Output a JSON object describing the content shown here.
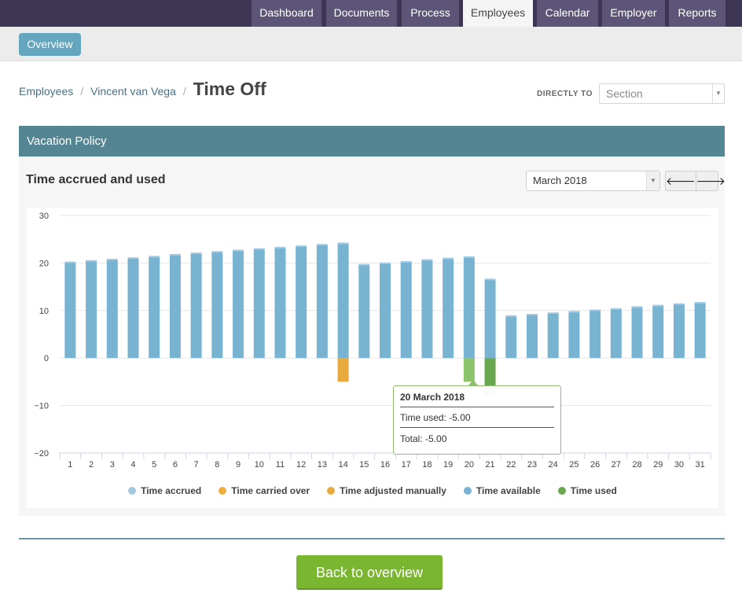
{
  "nav": {
    "tabs": [
      {
        "label": "Dashboard"
      },
      {
        "label": "Documents"
      },
      {
        "label": "Process"
      },
      {
        "label": "Employees",
        "active": true
      },
      {
        "label": "Calendar"
      },
      {
        "label": "Employer"
      },
      {
        "label": "Reports"
      }
    ]
  },
  "subbar": {
    "overview_label": "Overview"
  },
  "breadcrumb": {
    "items": [
      "Employees",
      "Vincent van Vega"
    ],
    "current": "Time Off"
  },
  "jump": {
    "label": "DIRECTLY TO",
    "placeholder": "Section"
  },
  "panel": {
    "title": "Vacation Policy",
    "subtitle": "Time accrued and used",
    "month": "March 2018",
    "prev_icon": "arrow-left-icon",
    "next_icon": "arrow-right-icon"
  },
  "chart_data": {
    "type": "bar",
    "ylim": [
      -20,
      30
    ],
    "yticks": [
      30,
      20,
      10,
      0,
      -10,
      -20
    ],
    "grid": true,
    "categories": [
      "1",
      "2",
      "3",
      "4",
      "5",
      "6",
      "7",
      "8",
      "9",
      "10",
      "11",
      "12",
      "13",
      "14",
      "15",
      "16",
      "17",
      "18",
      "19",
      "20",
      "21",
      "22",
      "23",
      "24",
      "25",
      "26",
      "27",
      "28",
      "29",
      "30",
      "31"
    ],
    "series": [
      {
        "name": "Time accrued",
        "color": "#a4c9e2",
        "values": [
          20.3,
          20.6,
          20.9,
          21.2,
          21.5,
          21.9,
          22.2,
          22.5,
          22.8,
          23.1,
          23.4,
          23.7,
          24.0,
          24.3,
          19.8,
          20.1,
          20.4,
          20.8,
          21.1,
          21.4,
          16.7,
          9.0,
          9.3,
          9.6,
          9.9,
          10.2,
          10.5,
          10.9,
          11.2,
          11.5,
          11.8
        ]
      },
      {
        "name": "Time carried over",
        "color": "#f0b041",
        "values": [
          0,
          0,
          0,
          0,
          0,
          0,
          0,
          0,
          0,
          0,
          0,
          0,
          0,
          0,
          0,
          0,
          0,
          0,
          0,
          0,
          0,
          0,
          0,
          0,
          0,
          0,
          0,
          0,
          0,
          0,
          0
        ]
      },
      {
        "name": "Time adjusted manually",
        "color": "#e8a93e",
        "values": [
          0,
          0,
          0,
          0,
          0,
          0,
          0,
          0,
          0,
          0,
          0,
          0,
          0,
          -5,
          0,
          0,
          0,
          0,
          0,
          0,
          0,
          0,
          0,
          0,
          0,
          0,
          0,
          0,
          0,
          0,
          0
        ]
      },
      {
        "name": "Time available",
        "color": "#79b3d2",
        "values": [
          20.0,
          20.3,
          20.6,
          20.9,
          21.2,
          21.6,
          21.9,
          22.2,
          22.5,
          22.8,
          23.1,
          23.4,
          23.7,
          24.0,
          19.5,
          19.8,
          20.1,
          20.5,
          20.8,
          21.1,
          16.4,
          8.7,
          9.0,
          9.3,
          9.6,
          9.9,
          10.2,
          10.6,
          10.9,
          11.2,
          11.5
        ]
      },
      {
        "name": "Time used",
        "color": "#6aa84f",
        "values": [
          0,
          0,
          0,
          0,
          0,
          0,
          0,
          0,
          0,
          0,
          0,
          0,
          0,
          0,
          0,
          0,
          0,
          0,
          0,
          -5,
          -8,
          0,
          0,
          0,
          0,
          0,
          0,
          0,
          0,
          0,
          0
        ]
      }
    ],
    "tooltip": {
      "title": "20 March 2018",
      "row": "Time used: -5.00",
      "total": "Total: -5.00"
    }
  },
  "footer": {
    "back_label": "Back to overview"
  }
}
